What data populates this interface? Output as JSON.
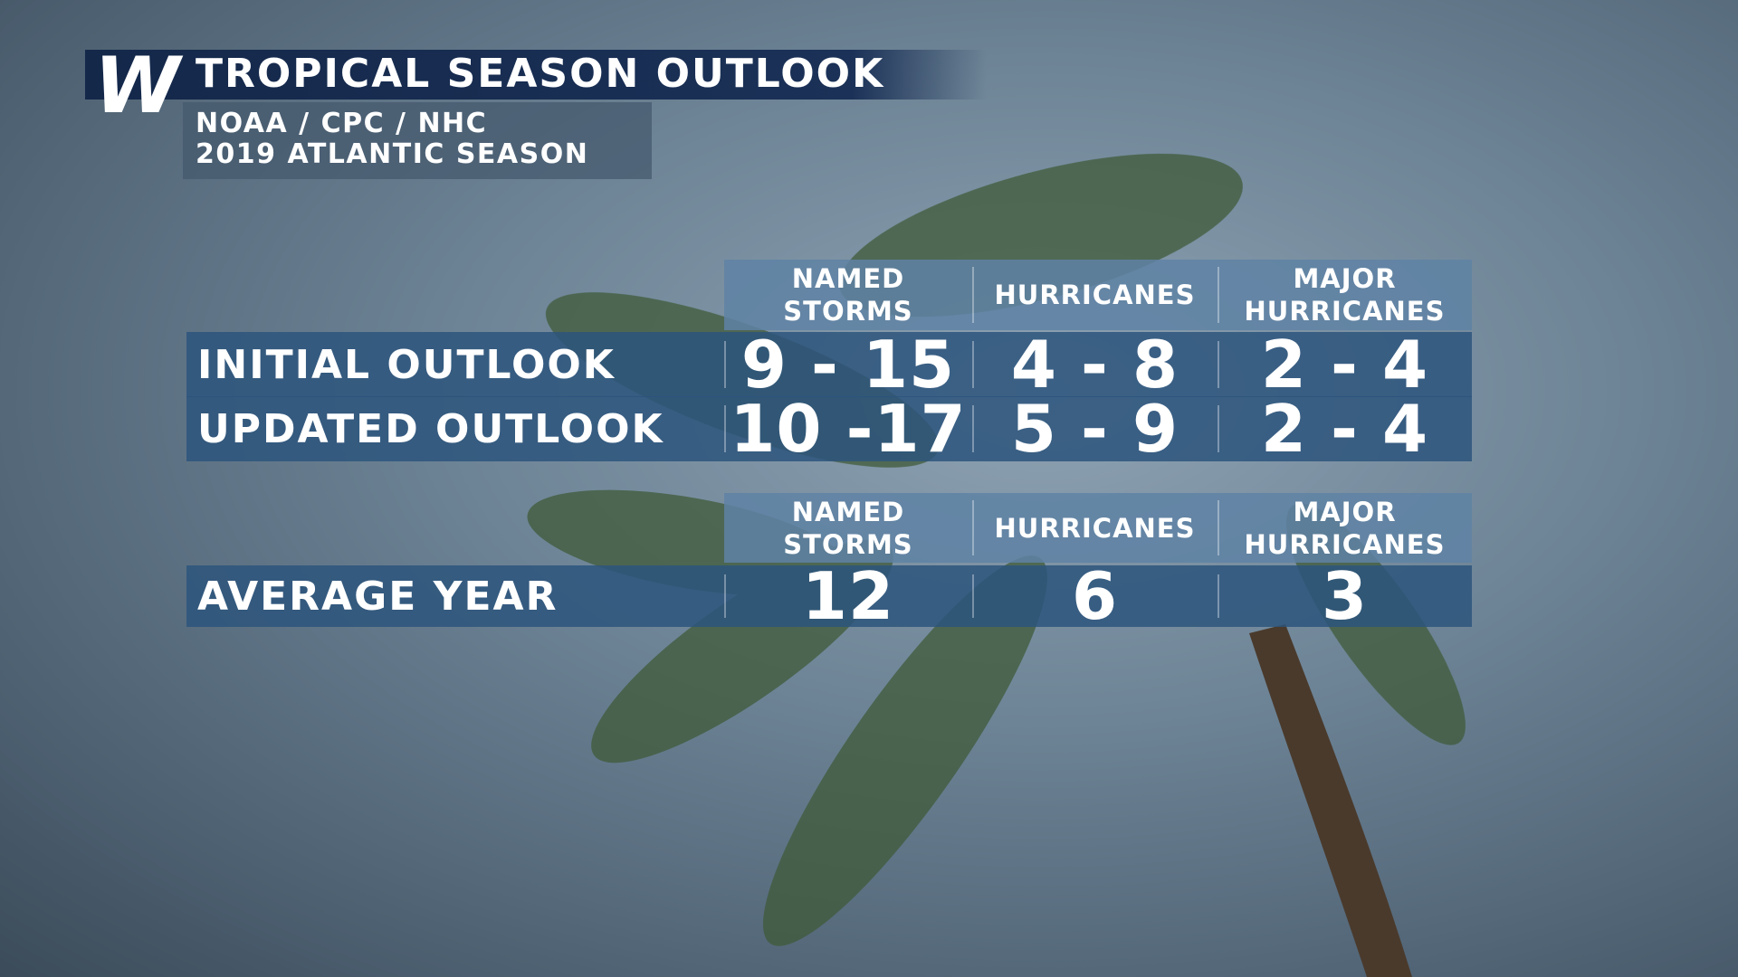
{
  "header": {
    "logo": "W",
    "title": "TROPICAL SEASON OUTLOOK",
    "subtitle": [
      "NOAA / CPC / NHC",
      "2019 ATLANTIC SEASON"
    ]
  },
  "outlook_table": {
    "columns": [
      "NAMED\nSTORMS",
      "HURRICANES",
      "MAJOR\nHURRICANES"
    ],
    "rows": [
      [
        "INITIAL OUTLOOK",
        "9 - 15",
        "4 - 8",
        "2 - 4"
      ],
      [
        "UPDATED OUTLOOK",
        "10 -17",
        "5 - 9",
        "2 - 4"
      ]
    ]
  },
  "average_table": {
    "columns": [
      "NAMED\nSTORMS",
      "HURRICANES",
      "MAJOR\nHURRICANES"
    ],
    "rows": [
      [
        "AVERAGE YEAR",
        "12",
        "6",
        "3"
      ]
    ]
  }
}
